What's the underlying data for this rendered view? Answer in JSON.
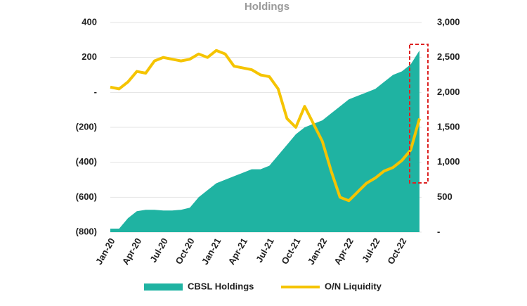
{
  "chart_data": {
    "type": "area-line",
    "title": "Holdings",
    "categories": [
      "Jan-20",
      null,
      null,
      "Apr-20",
      null,
      null,
      "Jul-20",
      null,
      null,
      "Oct-20",
      null,
      null,
      "Jan-21",
      null,
      null,
      "Apr-21",
      null,
      null,
      "Jul-21",
      null,
      null,
      "Oct-21",
      null,
      null,
      "Jan-22",
      null,
      null,
      "Apr-22",
      null,
      null,
      "Jul-22",
      null,
      null,
      "Oct-22",
      null,
      null
    ],
    "series": [
      {
        "name": "CBSL Holdings",
        "color": "#1fb3a2",
        "axis": "y2",
        "values": [
          50,
          50,
          200,
          300,
          320,
          320,
          310,
          310,
          320,
          350,
          500,
          600,
          700,
          750,
          800,
          850,
          900,
          900,
          950,
          1100,
          1250,
          1400,
          1500,
          1550,
          1600,
          1700,
          1800,
          1900,
          1950,
          2000,
          2050,
          2150,
          2250,
          2300,
          2400,
          2600
        ]
      },
      {
        "name": "O/N Liquidity",
        "color": "#f5c400",
        "values": [
          30,
          20,
          60,
          120,
          110,
          180,
          200,
          190,
          180,
          190,
          220,
          200,
          240,
          220,
          150,
          140,
          130,
          100,
          90,
          20,
          -150,
          -200,
          -80,
          -180,
          -280,
          -450,
          -600,
          -620,
          -570,
          -520,
          -490,
          -450,
          -430,
          -390,
          -330,
          -150
        ]
      }
    ],
    "ylim": [
      -800,
      400
    ],
    "yticks": [
      {
        "value": -800,
        "label": "(800)"
      },
      {
        "value": -600,
        "label": "(600)"
      },
      {
        "value": -400,
        "label": "(400)"
      },
      {
        "value": -200,
        "label": "(200)"
      },
      {
        "value": 0,
        "label": "-"
      },
      200,
      400
    ],
    "y2lim": [
      0,
      3000
    ],
    "y2ticks": [
      {
        "value": 0,
        "label": "-"
      },
      500,
      {
        "value": 1000,
        "label": "1,000"
      },
      {
        "value": 1500,
        "label": "1,500"
      },
      {
        "value": 2000,
        "label": "2,000"
      },
      {
        "value": 2500,
        "label": "2,500"
      },
      {
        "value": 3000,
        "label": "3,000"
      }
    ],
    "grid": true,
    "legend": "bottom"
  }
}
